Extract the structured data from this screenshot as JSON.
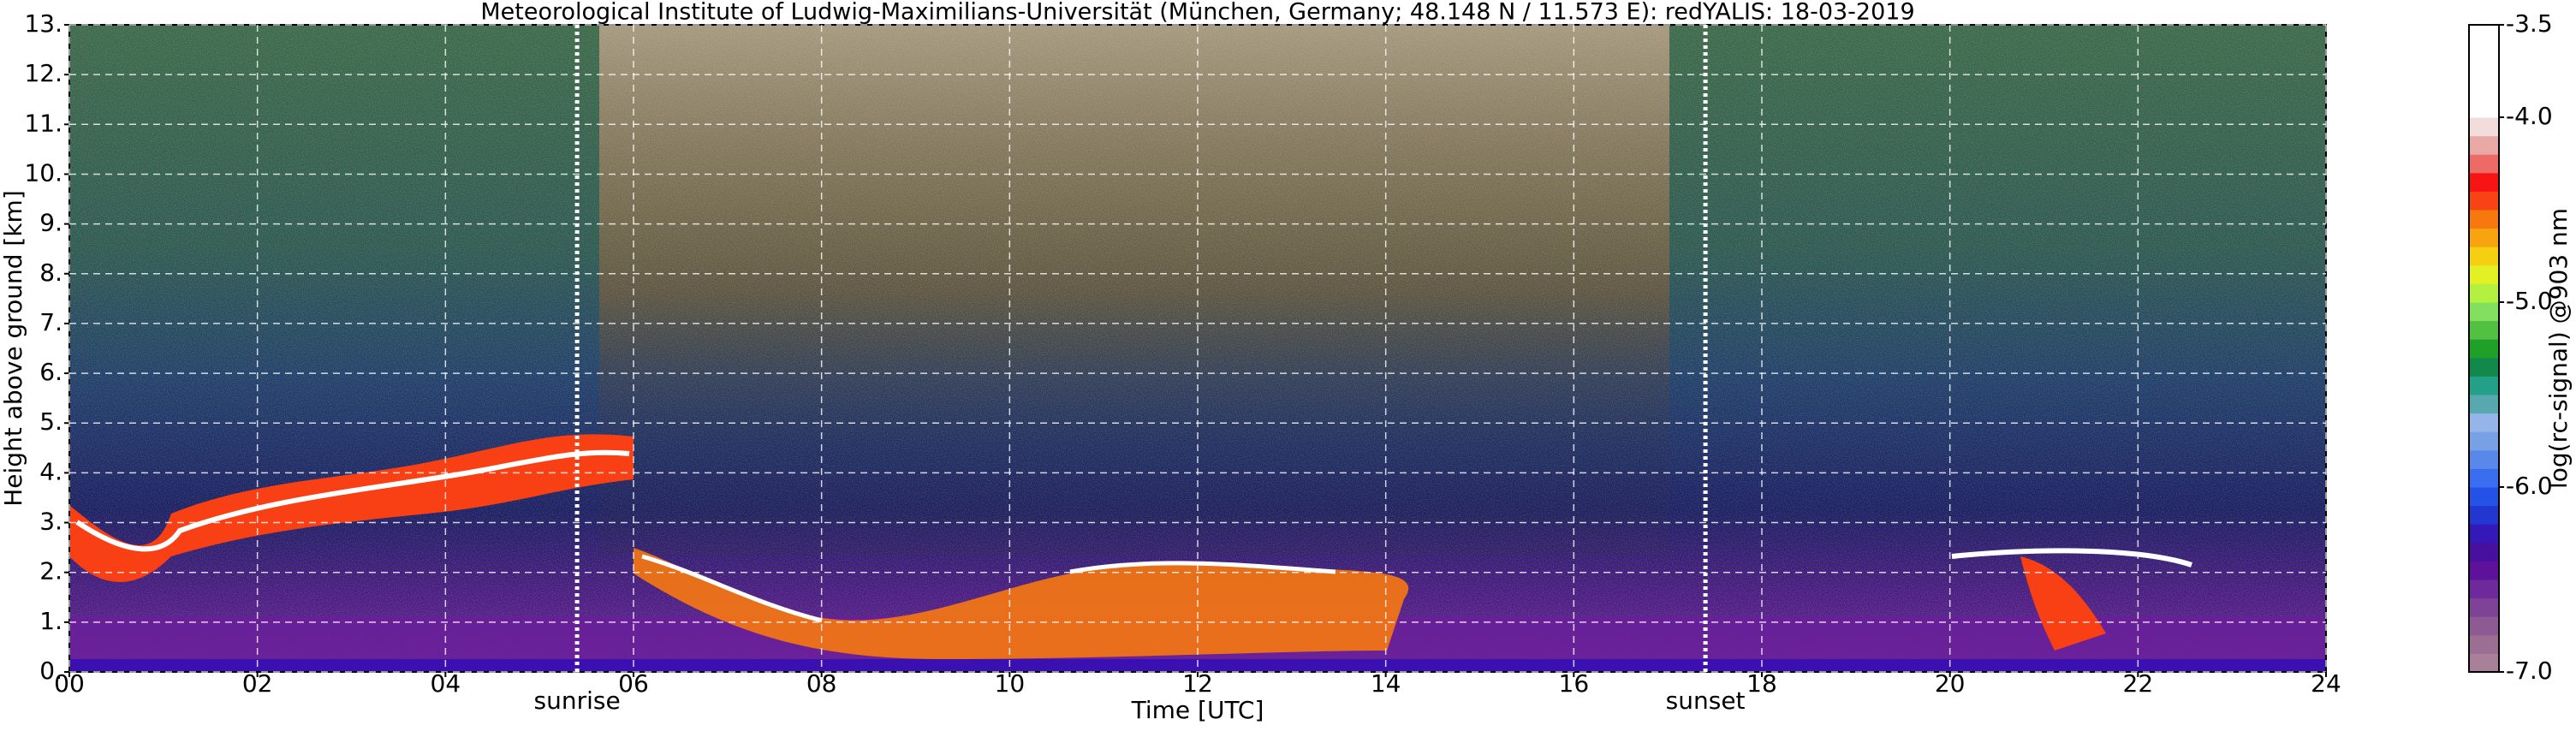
{
  "chart_data": {
    "type": "heatmap",
    "title": "Meteorological Institute of Ludwig-Maximilians-Universität (München, Germany; 48.148 N / 11.573 E):     redYALIS: 18-03-2019",
    "xlabel": "Time [UTC]",
    "ylabel": "Height above ground [km]",
    "xlim": [
      0,
      24
    ],
    "xticks": [
      {
        "value": 0,
        "label": "00"
      },
      {
        "value": 2,
        "label": "02"
      },
      {
        "value": 4,
        "label": "04"
      },
      {
        "value": 6,
        "label": "06"
      },
      {
        "value": 8,
        "label": "08"
      },
      {
        "value": 10,
        "label": "10"
      },
      {
        "value": 12,
        "label": "12"
      },
      {
        "value": 14,
        "label": "14"
      },
      {
        "value": 16,
        "label": "16"
      },
      {
        "value": 18,
        "label": "18"
      },
      {
        "value": 20,
        "label": "20"
      },
      {
        "value": 22,
        "label": "22"
      },
      {
        "value": 24,
        "label": "24"
      }
    ],
    "ylim": [
      0,
      13
    ],
    "yticks": [
      {
        "value": 0,
        "label": "0."
      },
      {
        "value": 1,
        "label": "1."
      },
      {
        "value": 2,
        "label": "2."
      },
      {
        "value": 3,
        "label": "3."
      },
      {
        "value": 4,
        "label": "4."
      },
      {
        "value": 5,
        "label": "5."
      },
      {
        "value": 6,
        "label": "6."
      },
      {
        "value": 7,
        "label": "7."
      },
      {
        "value": 8,
        "label": "8."
      },
      {
        "value": 9,
        "label": "9."
      },
      {
        "value": 10,
        "label": "10."
      },
      {
        "value": 11,
        "label": "11."
      },
      {
        "value": 12,
        "label": "12."
      },
      {
        "value": 13,
        "label": "13."
      }
    ],
    "grid": true,
    "annotations": [
      {
        "text": "sunrise",
        "x": 5.4
      },
      {
        "text": "sunset",
        "x": 17.4
      }
    ],
    "colorbar": {
      "label": "log(rc-signal) @903 nm",
      "lim": [
        -7.0,
        -3.5
      ],
      "ticks": [
        {
          "value": -7.0,
          "label": "-7.0"
        },
        {
          "value": -6.0,
          "label": "-6.0"
        },
        {
          "value": -5.0,
          "label": "-5.0"
        },
        {
          "value": -4.0,
          "label": "-4.0"
        },
        -3.5
      ],
      "colors": [
        "#a88098",
        "#9c6e94",
        "#8e5a94",
        "#7e4296",
        "#6e2a9a",
        "#5e129c",
        "#48109e",
        "#3418b8",
        "#2236d0",
        "#2452e6",
        "#3a6ef0",
        "#5a88ea",
        "#78a0e4",
        "#94b4ea",
        "#58a8b0",
        "#22a088",
        "#12884a",
        "#20a028",
        "#52c040",
        "#82e05e",
        "#b4f040",
        "#e2f024",
        "#f4d010",
        "#f8a410",
        "#f87810",
        "#f84414",
        "#f81414",
        "#ee6a66",
        "#e8a8a4",
        "#f2dcdc",
        "#ffffff",
        "#ffffff",
        "#ffffff",
        "#ffffff",
        "#ffffff"
      ]
    }
  }
}
